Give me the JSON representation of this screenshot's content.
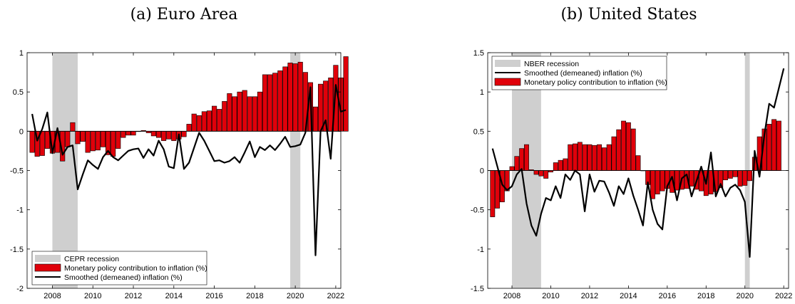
{
  "titles": {
    "left": "(a) Euro Area",
    "right": "(b) United States"
  },
  "colors": {
    "bar": "#e0000a",
    "bar_edge": "#000000",
    "line": "#000000",
    "recession": "#cfcfcf"
  },
  "chart_data": [
    {
      "type": "bar",
      "id": "ea",
      "xlim": [
        2006.75,
        2022.25
      ],
      "ylim": [
        -2,
        1
      ],
      "yticks": [
        "-2",
        "-1.5",
        "-1",
        "-0.5",
        "0",
        "0.5",
        "1"
      ],
      "ytick_values": [
        -2,
        -1.5,
        -1,
        -0.5,
        0,
        0.5,
        1
      ],
      "xticks": [
        "2008",
        "2010",
        "2012",
        "2014",
        "2016",
        "2018",
        "2020",
        "2022"
      ],
      "xtick_values": [
        2008,
        2010,
        2012,
        2014,
        2016,
        2018,
        2020,
        2022
      ],
      "x_start": 2007.0,
      "x_step": 0.25,
      "legend_position": "bottom-left",
      "recessions": [
        [
          2008.0,
          2009.25
        ],
        [
          2019.75,
          2020.25
        ]
      ],
      "series": [
        {
          "name": "Monetary policy contribution to inflation (%)",
          "kind": "bar",
          "values": [
            -0.27,
            -0.32,
            -0.31,
            -0.22,
            -0.28,
            -0.27,
            -0.38,
            -0.2,
            0.11,
            -0.16,
            -0.13,
            -0.27,
            -0.25,
            -0.24,
            -0.2,
            -0.3,
            -0.32,
            -0.22,
            -0.08,
            -0.05,
            -0.05,
            0.0,
            0.01,
            -0.02,
            -0.06,
            -0.08,
            -0.12,
            -0.1,
            -0.12,
            -0.1,
            -0.07,
            0.09,
            0.22,
            0.2,
            0.25,
            0.26,
            0.32,
            0.28,
            0.38,
            0.48,
            0.44,
            0.5,
            0.52,
            0.44,
            0.44,
            0.5,
            0.72,
            0.72,
            0.74,
            0.77,
            0.82,
            0.87,
            0.86,
            0.88,
            0.75,
            0.62,
            0.31,
            0.6,
            0.64,
            0.68,
            0.84,
            0.68,
            0.95
          ]
        },
        {
          "name": "Smoothed (demeaned) inflation (%)",
          "kind": "line",
          "values": [
            0.22,
            -0.12,
            0.03,
            0.24,
            -0.28,
            0.04,
            -0.3,
            -0.2,
            -0.18,
            -0.74,
            -0.55,
            -0.37,
            -0.43,
            -0.48,
            -0.33,
            -0.25,
            -0.33,
            -0.37,
            -0.31,
            -0.25,
            -0.23,
            -0.22,
            -0.34,
            -0.23,
            -0.31,
            -0.12,
            -0.23,
            -0.45,
            -0.47,
            -0.04,
            -0.48,
            -0.4,
            -0.21,
            -0.02,
            -0.12,
            -0.25,
            -0.38,
            -0.37,
            -0.4,
            -0.38,
            -0.33,
            -0.4,
            -0.27,
            -0.13,
            -0.33,
            -0.2,
            -0.24,
            -0.18,
            -0.24,
            -0.16,
            -0.07,
            -0.2,
            -0.19,
            -0.17,
            -0.02,
            0.56,
            -1.58,
            0.0,
            0.14,
            -0.35,
            0.59,
            0.25,
            0.27
          ]
        }
      ],
      "legend": [
        {
          "label": "CEPR recession",
          "kind": "patch"
        },
        {
          "label": "Monetary policy contribution to inflation (%)",
          "kind": "bar"
        },
        {
          "label": "Smoothed (demeaned) inflation (%)",
          "kind": "line"
        }
      ]
    },
    {
      "type": "bar",
      "id": "us",
      "xlim": [
        2006.75,
        2022.25
      ],
      "ylim": [
        -1.5,
        1.5
      ],
      "yticks": [
        "-1.5",
        "-1",
        "-0.5",
        "0",
        "0.5",
        "1",
        "1.5"
      ],
      "ytick_values": [
        -1.5,
        -1,
        -0.5,
        0,
        0.5,
        1,
        1.5
      ],
      "xticks": [
        "2008",
        "2010",
        "2012",
        "2014",
        "2016",
        "2018",
        "2020",
        "2022"
      ],
      "xtick_values": [
        2008,
        2010,
        2012,
        2014,
        2016,
        2018,
        2020,
        2022
      ],
      "x_start": 2007.0,
      "x_step": 0.25,
      "legend_position": "top-left",
      "recessions": [
        [
          2008.0,
          2009.5
        ],
        [
          2020.0,
          2020.25
        ]
      ],
      "series": [
        {
          "name": "Monetary policy contribution to inflation (%)",
          "kind": "bar",
          "values": [
            -0.59,
            -0.48,
            -0.4,
            -0.26,
            0.05,
            0.18,
            0.28,
            0.33,
            0.01,
            -0.05,
            -0.07,
            -0.1,
            -0.02,
            0.1,
            0.13,
            0.15,
            0.33,
            0.34,
            0.36,
            0.33,
            0.33,
            0.32,
            0.33,
            0.29,
            0.33,
            0.43,
            0.52,
            0.63,
            0.61,
            0.53,
            0.19,
            0.0,
            -0.18,
            -0.36,
            -0.3,
            -0.26,
            -0.23,
            -0.28,
            -0.25,
            -0.24,
            -0.23,
            -0.2,
            -0.24,
            -0.26,
            -0.32,
            -0.3,
            -0.27,
            -0.22,
            -0.12,
            -0.1,
            -0.08,
            -0.2,
            -0.19,
            -0.13,
            0.17,
            0.43,
            0.53,
            0.59,
            0.65,
            0.63
          ]
        },
        {
          "name": "Smoothed (demeaned) inflation (%)",
          "kind": "line",
          "values": [
            0.28,
            0.05,
            -0.18,
            -0.25,
            -0.2,
            -0.05,
            0.02,
            -0.42,
            -0.7,
            -0.83,
            -0.55,
            -0.35,
            -0.38,
            -0.2,
            -0.35,
            -0.05,
            -0.12,
            0.0,
            -0.05,
            -0.52,
            -0.05,
            -0.27,
            -0.13,
            -0.14,
            -0.28,
            -0.45,
            -0.2,
            -0.3,
            -0.1,
            -0.32,
            -0.5,
            -0.7,
            -0.15,
            -0.5,
            -0.68,
            -0.75,
            -0.2,
            -0.08,
            -0.38,
            -0.1,
            -0.05,
            -0.33,
            -0.14,
            0.05,
            -0.17,
            0.23,
            -0.33,
            -0.17,
            -0.33,
            -0.22,
            -0.18,
            -0.25,
            -0.4,
            -1.1,
            0.25,
            -0.08,
            0.45,
            0.85,
            0.8,
            1.05,
            1.3
          ]
        }
      ],
      "legend": [
        {
          "label": "NBER recession",
          "kind": "patch"
        },
        {
          "label": "Smoothed (demeaned) inflation (%)",
          "kind": "line"
        },
        {
          "label": "Monetary policy contribution to inflation (%)",
          "kind": "bar"
        }
      ]
    }
  ]
}
